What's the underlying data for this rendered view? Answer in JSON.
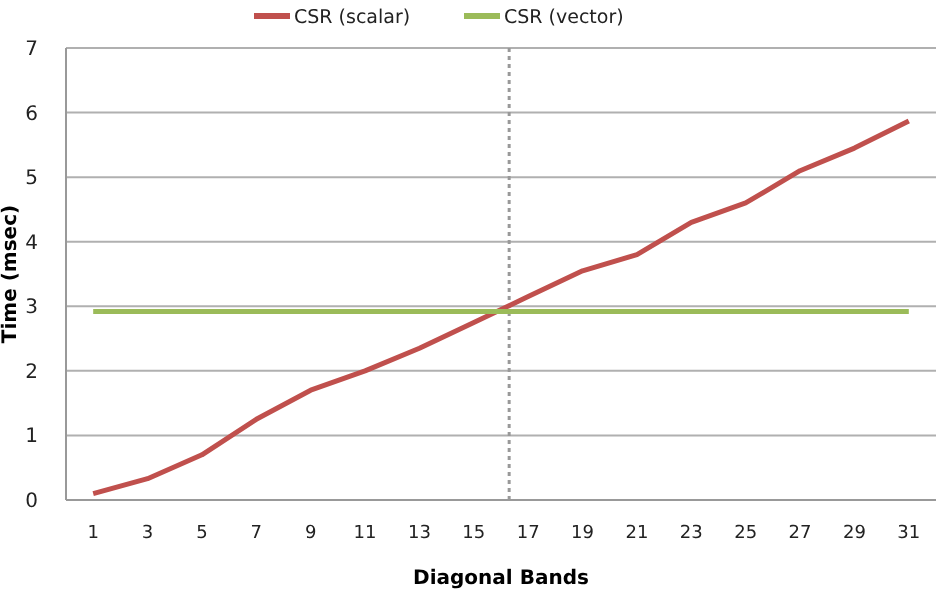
{
  "chart_data": {
    "type": "line",
    "xlabel": "Diagonal Bands",
    "ylabel": "Time (msec)",
    "x": [
      1,
      3,
      5,
      7,
      9,
      11,
      13,
      15,
      17,
      19,
      21,
      23,
      25,
      27,
      29,
      31
    ],
    "series": [
      {
        "name": "CSR (scalar)",
        "color": "#c0504d",
        "values": [
          0.1,
          0.33,
          0.7,
          1.25,
          1.7,
          2.0,
          2.35,
          2.75,
          3.15,
          3.55,
          3.8,
          4.3,
          4.6,
          5.1,
          5.45,
          5.87
        ]
      },
      {
        "name": "CSR (vector)",
        "color": "#9bbb59",
        "values": [
          2.92,
          2.92,
          2.92,
          2.92,
          2.92,
          2.92,
          2.92,
          2.92,
          2.92,
          2.92,
          2.92,
          2.92,
          2.92,
          2.92,
          2.92,
          2.92
        ]
      }
    ],
    "xlim": [
      0,
      32
    ],
    "xticks": [
      1,
      3,
      5,
      7,
      9,
      11,
      13,
      15,
      17,
      19,
      21,
      23,
      25,
      27,
      29,
      31
    ],
    "ylim": [
      0,
      7
    ],
    "yticks": [
      0,
      1,
      2,
      3,
      4,
      5,
      6,
      7
    ],
    "ref_lines": [
      {
        "axis": "x",
        "value": 16.3,
        "color": "#999999",
        "line_style": "dotted"
      }
    ],
    "grid": "y",
    "legend": "top",
    "marker": "none",
    "line_style": "solid"
  }
}
